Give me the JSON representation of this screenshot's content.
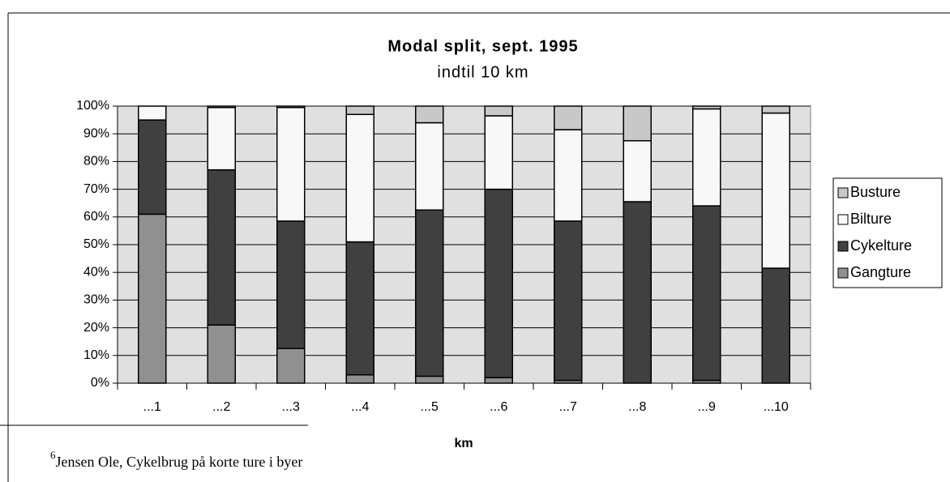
{
  "chart_data": {
    "type": "stacked_bar",
    "title": "Modal split, sept. 1995",
    "subtitle": "indtil 10 km",
    "x_label": "km",
    "categories": [
      "...1",
      "...2",
      "...3",
      "...4",
      "...5",
      "...6",
      "...7",
      "...8",
      "...9",
      "...10"
    ],
    "series": [
      {
        "name": "Gangture",
        "color": "#909090",
        "values": [
          61,
          21,
          12.5,
          3,
          2.5,
          2,
          1,
          0,
          1,
          0
        ]
      },
      {
        "name": "Cykelture",
        "color": "#404040",
        "values": [
          34,
          56,
          46,
          48,
          60,
          68,
          57.5,
          65.5,
          63,
          41.5
        ]
      },
      {
        "name": "Bilture",
        "color": "#f8f8f8",
        "values": [
          5,
          22.5,
          41,
          46,
          31.5,
          26.5,
          33,
          22,
          35,
          56
        ]
      },
      {
        "name": "Busture",
        "color": "#c8c8c8",
        "values": [
          0,
          0.5,
          0.5,
          3,
          6,
          3.5,
          8.5,
          12.5,
          1,
          2.5
        ]
      }
    ],
    "ylim": [
      0,
      100
    ],
    "yticks": [
      {
        "value": 0,
        "label": "0%"
      },
      {
        "value": 10,
        "label": "10%"
      },
      {
        "value": 20,
        "label": "20%"
      },
      {
        "value": 30,
        "label": "30%"
      },
      {
        "value": 40,
        "label": "40%"
      },
      {
        "value": 50,
        "label": "50%"
      },
      {
        "value": 60,
        "label": "60%"
      },
      {
        "value": 70,
        "label": "70%"
      },
      {
        "value": 80,
        "label": "80%"
      },
      {
        "value": 90,
        "label": "90%"
      },
      {
        "value": 100,
        "label": "100%"
      }
    ],
    "grid": true,
    "legend": "right"
  },
  "footnote": {
    "marker": "6",
    "text": "Jensen Ole, Cykelbrug på korte ture i byer"
  }
}
